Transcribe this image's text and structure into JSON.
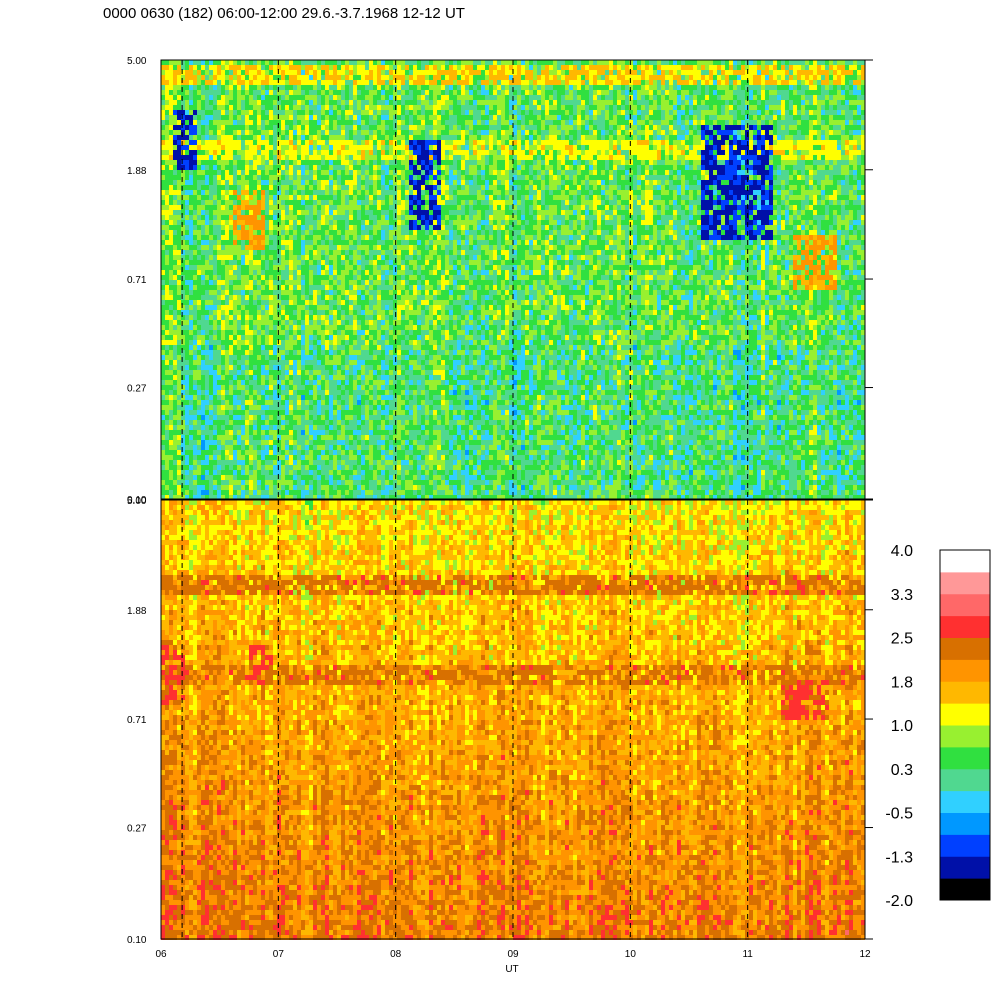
{
  "title": "0000 0630 (182) 06:00-12:00 29.6.-3.7.1968  12-12 UT",
  "chart_data": [
    {
      "type": "heatmap",
      "panel": "upper",
      "x_range": [
        6,
        12
      ],
      "y_range": [
        0.1,
        5.0
      ],
      "y_scale": "log",
      "x_ticks": [
        "06",
        "07",
        "08",
        "09",
        "10",
        "11",
        "12"
      ],
      "y_ticks": [
        "0.10",
        "0.27",
        "0.71",
        "1.88",
        "5.00"
      ],
      "y_tick_values": [
        0.1,
        0.27,
        0.71,
        1.88,
        5.0
      ],
      "hour_markers": [
        6.18,
        7,
        8,
        9,
        10,
        11
      ],
      "dominant_levels": [
        -0.5,
        0.3,
        1.0
      ],
      "features": [
        {
          "desc": "bright band near top",
          "y": 4.3,
          "level": 1.4
        },
        {
          "desc": "band",
          "y": 2.2,
          "level": 1.2
        },
        {
          "desc": "blue dropouts",
          "x": [
            6.1,
            6.3
          ],
          "y": [
            1.9,
            3.2
          ],
          "level": -1.3
        },
        {
          "desc": "blue dropouts",
          "x": [
            8.1,
            8.4
          ],
          "y": [
            1.1,
            2.5
          ],
          "level": -1.3
        },
        {
          "desc": "blue dropouts",
          "x": [
            10.6,
            11.2
          ],
          "y": [
            1.0,
            2.8
          ],
          "level": -1.3
        },
        {
          "desc": "warm patch",
          "x": [
            6.6,
            6.9
          ],
          "y": [
            0.9,
            1.6
          ],
          "level": 1.8
        },
        {
          "desc": "warm patch",
          "x": [
            11.4,
            11.75
          ],
          "y": [
            0.65,
            1.05
          ],
          "level": 1.8
        }
      ]
    },
    {
      "type": "heatmap",
      "panel": "lower",
      "x_range": [
        6,
        12
      ],
      "y_range": [
        0.1,
        5.0
      ],
      "y_scale": "log",
      "x_ticks": [
        "06",
        "07",
        "08",
        "09",
        "10",
        "11",
        "12"
      ],
      "y_ticks": [
        "0.10",
        "0.27",
        "0.71",
        "1.88",
        "5.00"
      ],
      "y_tick_values": [
        0.1,
        0.27,
        0.71,
        1.88,
        5.0
      ],
      "xlabel": "UT",
      "hour_markers": [
        6.18,
        7,
        8,
        9,
        10,
        11
      ],
      "dominant_levels": [
        1.0,
        1.8,
        2.2
      ],
      "features": [
        {
          "desc": "dark orange band",
          "y": 2.3,
          "level": 2.3
        },
        {
          "desc": "dark orange band",
          "y": 1.05,
          "level": 2.3
        },
        {
          "desc": "red patch",
          "x": [
            6.0,
            6.2
          ],
          "y": [
            0.8,
            1.4
          ],
          "level": 2.6
        },
        {
          "desc": "red patch",
          "x": [
            6.75,
            6.95
          ],
          "y": [
            0.95,
            1.35
          ],
          "level": 2.6
        },
        {
          "desc": "red patch",
          "x": [
            11.3,
            11.7
          ],
          "y": [
            0.7,
            1.0
          ],
          "level": 2.6
        }
      ]
    }
  ],
  "colorbar": {
    "labels": [
      "4.0",
      "3.3",
      "2.5",
      "1.8",
      "1.0",
      "0.3",
      "-0.5",
      "-1.3",
      "-2.0"
    ],
    "range": [
      -2.0,
      4.0
    ],
    "colors_bottom_to_top": [
      "#000000",
      "#0010a8",
      "#0040ff",
      "#0098ff",
      "#30d0ff",
      "#50d890",
      "#30e040",
      "#98f030",
      "#ffff00",
      "#ffb800",
      "#ff9400",
      "#d87000",
      "#ff3030",
      "#ff6868",
      "#ff9898",
      "#ffffff"
    ]
  }
}
